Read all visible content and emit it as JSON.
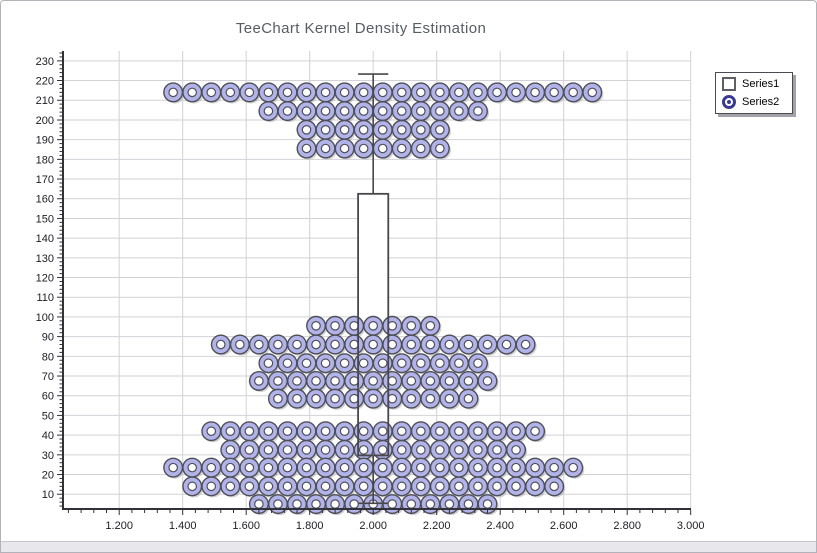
{
  "chart_data": {
    "type": "scatter",
    "title": "TeeChart Kernel Density Estimation",
    "xlabel": "",
    "ylabel": "",
    "grid": true,
    "legend": {
      "position": "top-right",
      "entries": [
        "Series1",
        "Series2"
      ]
    },
    "x_axis": {
      "range": [
        1.023,
        3.001
      ],
      "tick_values": [
        1.2,
        1.4,
        1.6,
        1.8,
        2.0,
        2.2,
        2.4,
        2.6,
        2.8,
        3.0
      ],
      "tick_labels": [
        "1.200",
        "1.400",
        "1.600",
        "1.800",
        "2.000",
        "2.200",
        "2.400",
        "2.600",
        "2.800",
        "3.000"
      ],
      "minor_tick_step": 0.04
    },
    "y_axis": {
      "range": [
        2.5,
        235
      ],
      "tick_values": [
        230,
        220,
        210,
        200,
        190,
        180,
        170,
        160,
        150,
        140,
        130,
        120,
        110,
        100,
        90,
        80,
        70,
        60,
        50,
        40,
        30,
        20,
        10
      ],
      "minor_tick_step": 2
    },
    "series": [
      {
        "name": "Series1",
        "type": "box",
        "x_center": 2.0,
        "box_half_width": 0.0475,
        "q1": 29.7,
        "median": 64,
        "q3": 162.5,
        "whisker_low": 5.4,
        "whisker_high": 223.3
      },
      {
        "name": "Series2",
        "type": "beeswarm_scatter",
        "x_center": 2.0,
        "x_spacing": 0.06,
        "total_points": 200,
        "rows": [
          {
            "y": 214,
            "count": 23,
            "x_offset": 0.03
          },
          {
            "y": 204.5,
            "count": 12,
            "x_offset": 0
          },
          {
            "y": 195,
            "count": 8,
            "x_offset": 0
          },
          {
            "y": 185.5,
            "count": 8,
            "x_offset": 0
          },
          {
            "y": 95.5,
            "count": 7,
            "x_offset": 0
          },
          {
            "y": 86,
            "count": 17,
            "x_offset": 0
          },
          {
            "y": 76.5,
            "count": 12,
            "x_offset": 0
          },
          {
            "y": 67.5,
            "count": 13,
            "x_offset": 0
          },
          {
            "y": 58.5,
            "count": 11,
            "x_offset": 0
          },
          {
            "y": 42,
            "count": 18,
            "x_offset": 0
          },
          {
            "y": 32.5,
            "count": 16,
            "x_offset": 0
          },
          {
            "y": 23.5,
            "count": 22,
            "x_offset": 0
          },
          {
            "y": 14,
            "count": 20,
            "x_offset": 0
          },
          {
            "y": 5,
            "count": 13,
            "x_offset": 0
          }
        ]
      }
    ]
  },
  "colors": {
    "point_fill": "#b1b3e9",
    "point_border": "#4f4f58",
    "point_hole": "#ffffff",
    "point_shadow": "#a9a9b0",
    "box_line": "#47474d",
    "box_fill": "#ffffff",
    "median_line": "#9a9aa0",
    "grid": "#d2d2d7",
    "axis": "#313137",
    "tick_label": "#1c1c24",
    "title": "#575c66",
    "legend_symbol": "#3a3a92",
    "window_border": "#b2b2ba",
    "statusbar_bg": "#e7e7ec"
  }
}
